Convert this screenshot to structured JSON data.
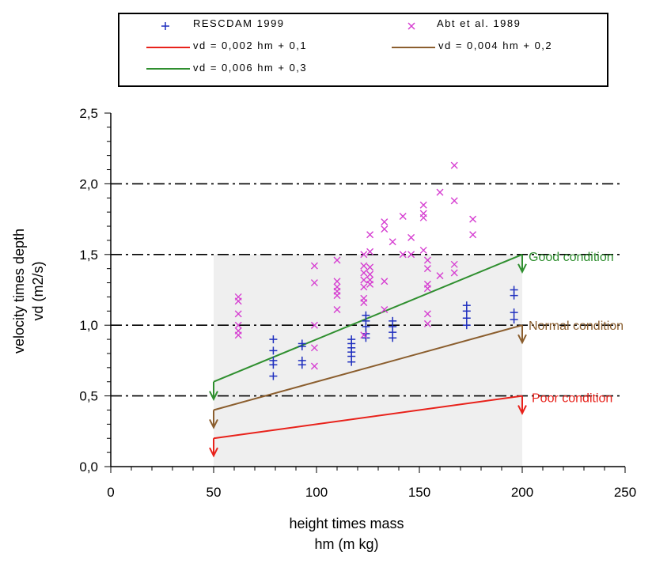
{
  "chart_data": {
    "type": "scatter",
    "title": "",
    "xlabel": "height times mass",
    "xlabel_units": "hm (m kg)",
    "ylabel_line1": "velocity times depth",
    "ylabel_line2": "vd (m2/s)",
    "xlim": [
      0,
      250
    ],
    "ylim": [
      0,
      2.5
    ],
    "x_ticks": [
      "0",
      "50",
      "100",
      "150",
      "200",
      "250"
    ],
    "y_ticks": [
      "0,0",
      "0,5",
      "1,0",
      "1,5",
      "2,0",
      "2,5"
    ],
    "x_tick_values": [
      0,
      50,
      100,
      150,
      200,
      250
    ],
    "y_tick_values": [
      0,
      0.5,
      1.0,
      1.5,
      2.0,
      2.5
    ],
    "reference_lines_y": [
      0.5,
      1.0,
      1.5,
      2.0
    ],
    "shaded_range_x": [
      50,
      200
    ],
    "legend": {
      "rescdam": "RESCDAM 1999",
      "abt": "Abt et al. 1989",
      "red": "vd = 0,002 hm + 0,1",
      "brown": "vd = 0,004 hm + 0,2",
      "green": "vd = 0,006 hm + 0,3"
    },
    "lines": [
      {
        "name": "vd = 0,002 hm + 0,1",
        "slope": 0.002,
        "intercept": 0.1,
        "color": "#e8221b",
        "label": "Poor condition"
      },
      {
        "name": "vd = 0,004 hm + 0,2",
        "slope": 0.004,
        "intercept": 0.2,
        "color": "#8b5e2e",
        "label": "Normal condition"
      },
      {
        "name": "vd = 0,006 hm + 0,3",
        "slope": 0.006,
        "intercept": 0.3,
        "color": "#2f8f2f",
        "label": "Good condition"
      }
    ],
    "series": [
      {
        "name": "RESCDAM 1999",
        "marker": "plus",
        "color": "#1f2fbf",
        "points": [
          [
            79,
            0.9
          ],
          [
            79,
            0.82
          ],
          [
            79,
            0.75
          ],
          [
            79,
            0.72
          ],
          [
            79,
            0.64
          ],
          [
            93,
            0.87
          ],
          [
            93,
            0.85
          ],
          [
            93,
            0.75
          ],
          [
            93,
            0.72
          ],
          [
            117,
            0.9
          ],
          [
            117,
            0.87
          ],
          [
            117,
            0.84
          ],
          [
            117,
            0.81
          ],
          [
            117,
            0.78
          ],
          [
            117,
            0.74
          ],
          [
            124,
            1.07
          ],
          [
            124,
            1.03
          ],
          [
            124,
            0.99
          ],
          [
            124,
            0.94
          ],
          [
            124,
            0.91
          ],
          [
            137,
            1.03
          ],
          [
            137,
            0.99
          ],
          [
            137,
            0.95
          ],
          [
            137,
            0.91
          ],
          [
            173,
            1.14
          ],
          [
            173,
            1.1
          ],
          [
            173,
            1.05
          ],
          [
            173,
            1.0
          ],
          [
            196,
            1.25
          ],
          [
            196,
            1.21
          ],
          [
            196,
            1.09
          ],
          [
            196,
            1.04
          ]
        ]
      },
      {
        "name": "Abt et al. 1989",
        "marker": "x",
        "color": "#d63fd1",
        "points": [
          [
            62,
            1.2
          ],
          [
            62,
            1.17
          ],
          [
            62,
            1.08
          ],
          [
            62,
            1.0
          ],
          [
            62,
            0.96
          ],
          [
            62,
            0.93
          ],
          [
            99,
            1.42
          ],
          [
            99,
            1.3
          ],
          [
            99,
            1.0
          ],
          [
            99,
            0.84
          ],
          [
            99,
            0.71
          ],
          [
            110,
            1.46
          ],
          [
            110,
            1.31
          ],
          [
            110,
            1.27
          ],
          [
            110,
            1.24
          ],
          [
            110,
            1.21
          ],
          [
            110,
            1.11
          ],
          [
            123,
            1.5
          ],
          [
            123,
            1.42
          ],
          [
            123,
            1.37
          ],
          [
            123,
            1.32
          ],
          [
            123,
            1.27
          ],
          [
            123,
            1.19
          ],
          [
            123,
            1.16
          ],
          [
            123,
            0.93
          ],
          [
            126,
            1.64
          ],
          [
            126,
            1.52
          ],
          [
            126,
            1.41
          ],
          [
            126,
            1.36
          ],
          [
            126,
            1.32
          ],
          [
            126,
            1.29
          ],
          [
            133,
            1.73
          ],
          [
            133,
            1.68
          ],
          [
            133,
            1.31
          ],
          [
            133,
            1.11
          ],
          [
            137,
            1.59
          ],
          [
            142,
            1.77
          ],
          [
            142,
            1.5
          ],
          [
            146,
            1.62
          ],
          [
            146,
            1.5
          ],
          [
            152,
            1.85
          ],
          [
            152,
            1.79
          ],
          [
            152,
            1.76
          ],
          [
            152,
            1.53
          ],
          [
            154,
            1.46
          ],
          [
            154,
            1.4
          ],
          [
            154,
            1.29
          ],
          [
            154,
            1.26
          ],
          [
            154,
            1.08
          ],
          [
            154,
            1.01
          ],
          [
            160,
            1.94
          ],
          [
            160,
            1.35
          ],
          [
            167,
            2.13
          ],
          [
            167,
            1.88
          ],
          [
            167,
            1.43
          ],
          [
            167,
            1.37
          ],
          [
            176,
            1.75
          ],
          [
            176,
            1.64
          ]
        ]
      }
    ],
    "annotations": [
      {
        "text": "Good condition",
        "x": 200,
        "y": 1.5
      },
      {
        "text": "Normal condition",
        "x": 200,
        "y": 1.0
      },
      {
        "text": "Poor condition",
        "x": 200,
        "y": 0.5
      }
    ]
  }
}
